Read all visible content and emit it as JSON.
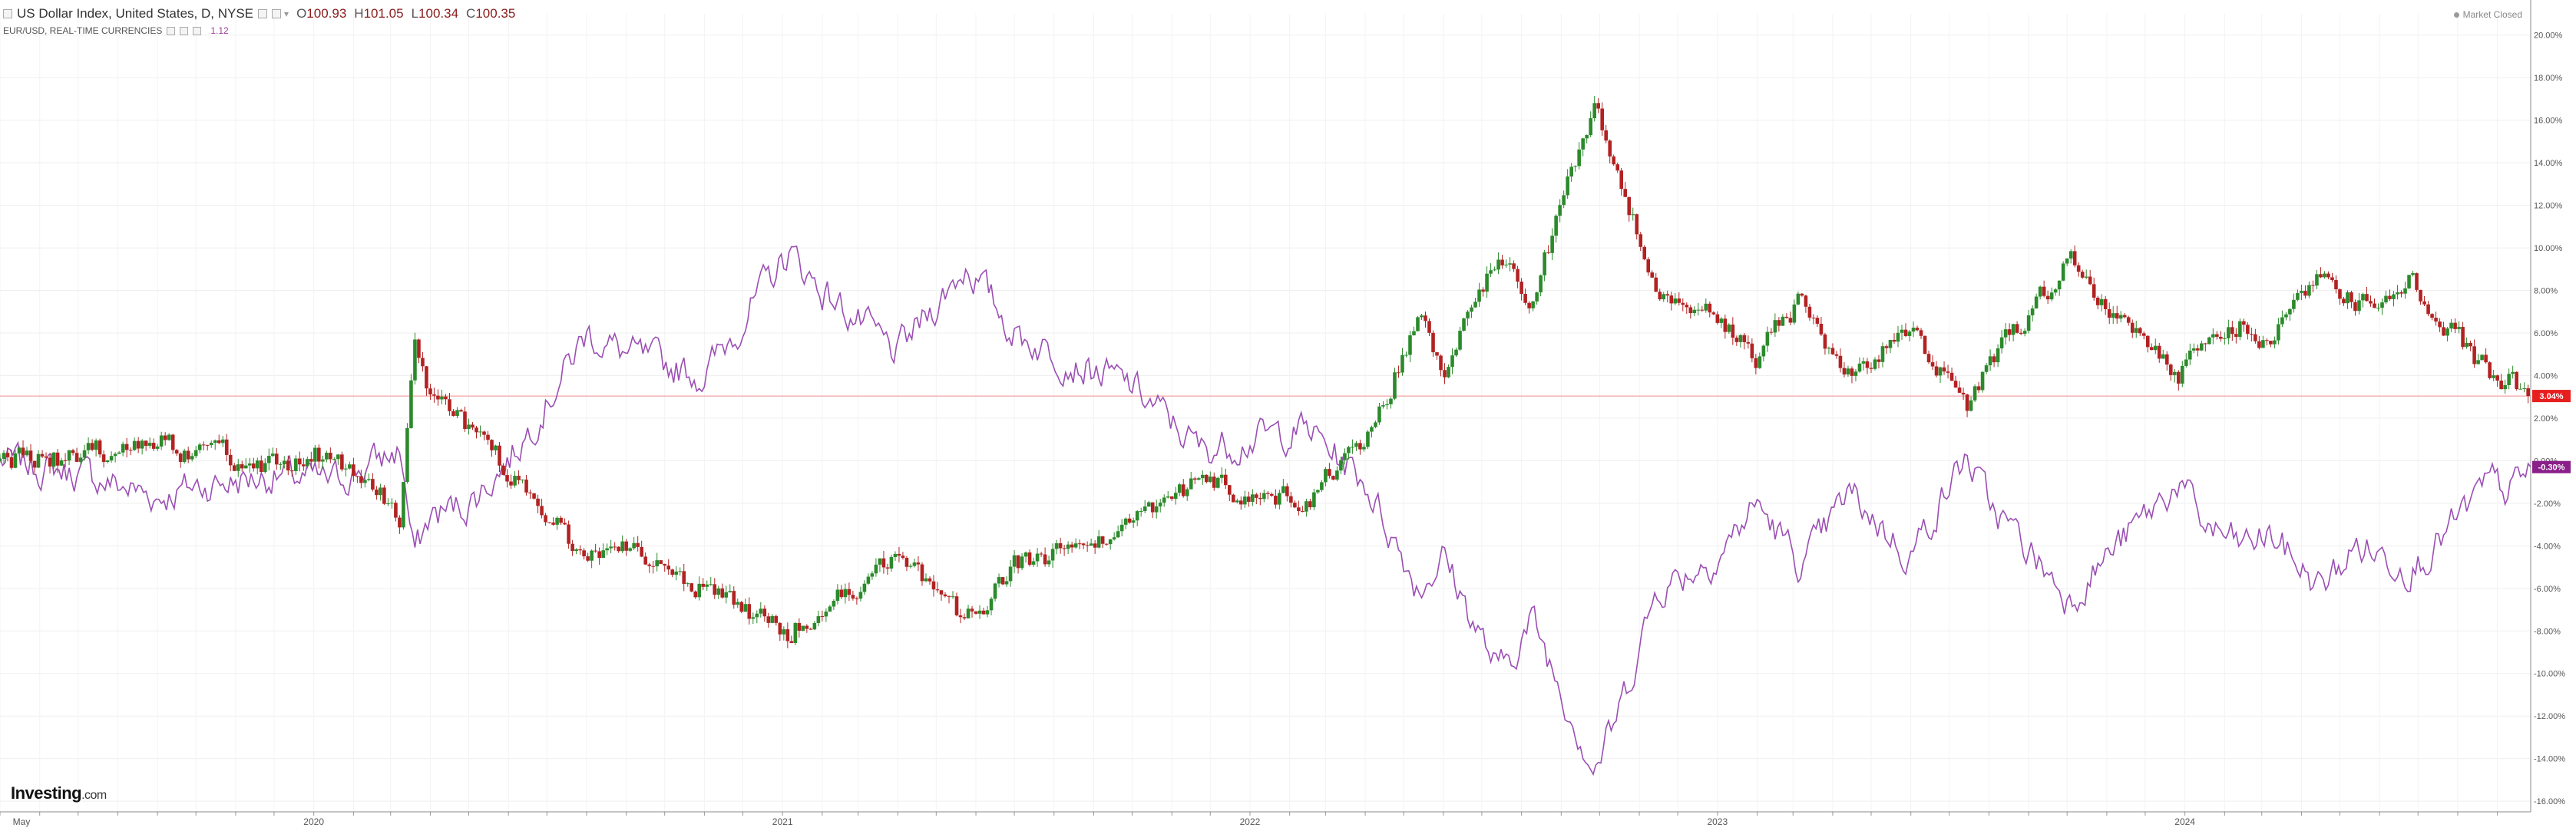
{
  "header": {
    "title": "US Dollar Index, United States, D, NYSE",
    "ohlc": [
      {
        "label": "O",
        "value": "100.93"
      },
      {
        "label": "H",
        "value": "101.05"
      },
      {
        "label": "L",
        "value": "100.34"
      },
      {
        "label": "C",
        "value": "100.35"
      }
    ],
    "compare_label": "EUR/USD, REAL-TIME CURRENCIES",
    "compare_value": "1.12"
  },
  "status": {
    "text": "Market Closed"
  },
  "logo": {
    "brand": "Investing",
    "suffix": ".com"
  },
  "colors": {
    "up": "#2b8a2b",
    "down": "#b22222",
    "compare": "#9b4fb4",
    "price_line": "#f08a8a",
    "last_badge": "#e61e1e",
    "compare_badge": "#8a1f8a",
    "grid": "#efefef"
  },
  "chart_data": {
    "type": "line",
    "xlabel": "",
    "ylabel": "",
    "x_ticks": [
      "May",
      "2020",
      "2021",
      "2022",
      "2023",
      "2024"
    ],
    "y_ticks": [
      "20.00%",
      "18.00%",
      "16.00%",
      "14.00%",
      "12.00%",
      "10.00%",
      "8.00%",
      "6.00%",
      "4.00%",
      "2.00%",
      "0.00%",
      "-2.00%",
      "-4.00%",
      "-6.00%",
      "-8.00%",
      "-10.00%",
      "-12.00%",
      "-14.00%",
      "-16.00%"
    ],
    "ylim": [
      -16.5,
      21
    ],
    "xlim": [
      "2019-05-01",
      "2024-09-27"
    ],
    "grid": true,
    "series": [
      {
        "name": "US Dollar Index",
        "style": "candlestick",
        "last_label": "3.04%",
        "dates": [
          "2019-05-01",
          "2019-07-01",
          "2019-09-01",
          "2019-10-01",
          "2019-12-01",
          "2020-01-15",
          "2020-03-09",
          "2020-03-19",
          "2020-04-01",
          "2020-05-01",
          "2020-06-01",
          "2020-07-01",
          "2020-08-01",
          "2020-09-01",
          "2020-11-01",
          "2021-01-06",
          "2021-02-01",
          "2021-03-31",
          "2021-05-25",
          "2021-07-01",
          "2021-08-20",
          "2021-10-01",
          "2021-11-24",
          "2022-01-01",
          "2022-02-15",
          "2022-04-01",
          "2022-05-13",
          "2022-06-01",
          "2022-07-14",
          "2022-08-10",
          "2022-09-27",
          "2022-10-15",
          "2022-11-15",
          "2023-01-01",
          "2023-02-01",
          "2023-03-08",
          "2023-04-14",
          "2023-05-31",
          "2023-07-14",
          "2023-08-01",
          "2023-10-03",
          "2023-11-01",
          "2023-12-27",
          "2024-01-15",
          "2024-02-14",
          "2024-03-08",
          "2024-04-16",
          "2024-05-15",
          "2024-06-26",
          "2024-07-15",
          "2024-08-27",
          "2024-09-10",
          "2024-09-27"
        ],
        "values": [
          0,
          0.2,
          0.9,
          0.4,
          -0.2,
          0.4,
          -2.5,
          5.5,
          3.0,
          1.5,
          -0.5,
          -2.5,
          -4.8,
          -4.2,
          -6.0,
          -8.0,
          -7.0,
          -4.5,
          -7.5,
          -5.0,
          -4.2,
          -3.0,
          -1.0,
          -1.5,
          -1.8,
          1.0,
          6.5,
          4.5,
          9.5,
          7.5,
          17.0,
          13.5,
          8.0,
          7.0,
          5.0,
          7.5,
          4.0,
          6.5,
          2.3,
          4.5,
          9.5,
          7.5,
          3.8,
          5.5,
          6.5,
          5.8,
          9.0,
          7.5,
          8.5,
          7.0,
          4.0,
          3.8,
          3.04
        ]
      },
      {
        "name": "EUR/USD",
        "style": "line",
        "last_label": "-0.30%",
        "dates": [
          "2019-05-01",
          "2019-07-01",
          "2019-09-01",
          "2019-10-01",
          "2019-12-01",
          "2020-01-15",
          "2020-03-09",
          "2020-03-19",
          "2020-04-01",
          "2020-05-01",
          "2020-06-01",
          "2020-07-01",
          "2020-08-01",
          "2020-09-01",
          "2020-11-01",
          "2021-01-06",
          "2021-02-01",
          "2021-03-31",
          "2021-05-25",
          "2021-07-01",
          "2021-08-20",
          "2021-10-01",
          "2021-11-24",
          "2022-01-01",
          "2022-02-15",
          "2022-04-01",
          "2022-05-13",
          "2022-06-01",
          "2022-07-14",
          "2022-08-10",
          "2022-09-27",
          "2022-10-15",
          "2022-11-15",
          "2023-01-01",
          "2023-02-01",
          "2023-03-08",
          "2023-04-14",
          "2023-05-31",
          "2023-07-14",
          "2023-08-01",
          "2023-10-03",
          "2023-11-01",
          "2023-12-27",
          "2024-01-15",
          "2024-02-14",
          "2024-03-08",
          "2024-04-16",
          "2024-05-15",
          "2024-06-26",
          "2024-07-15",
          "2024-08-27",
          "2024-09-10",
          "2024-09-27"
        ],
        "values": [
          0,
          -0.6,
          -1.7,
          -1.2,
          -0.7,
          -1.0,
          0.5,
          -4.5,
          -2.6,
          -2.0,
          0.0,
          2.8,
          6.0,
          5.0,
          4.0,
          9.8,
          8.0,
          5.0,
          9.2,
          6.0,
          4.5,
          3.5,
          0.5,
          1.0,
          1.5,
          -1.0,
          -6.0,
          -4.5,
          -10.0,
          -7.5,
          -14.5,
          -12.0,
          -6.0,
          -4.5,
          -2.0,
          -5.0,
          -1.5,
          -4.5,
          0.2,
          -2.0,
          -6.5,
          -4.5,
          -1.0,
          -3.0,
          -4.0,
          -3.5,
          -6.0,
          -4.0,
          -5.0,
          -4.0,
          -1.0,
          -1.5,
          -0.3
        ]
      }
    ]
  }
}
